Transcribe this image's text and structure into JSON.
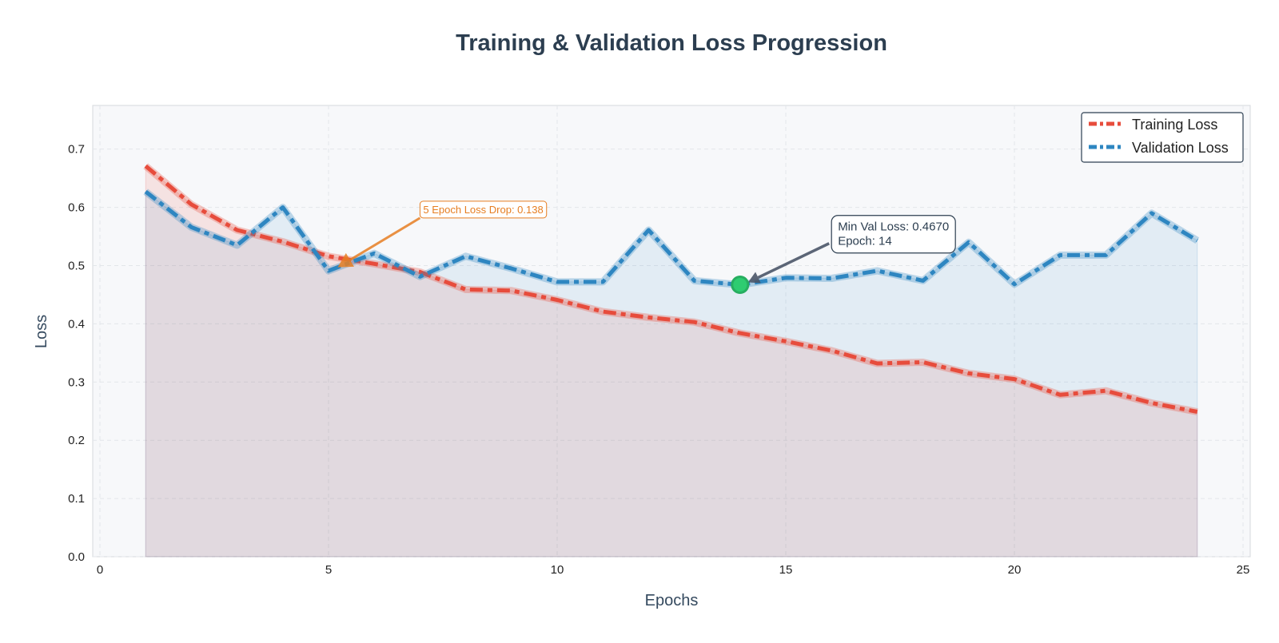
{
  "chart_data": {
    "type": "line",
    "title": "Training & Validation Loss Progression",
    "xlabel": "Epochs",
    "ylabel": "Loss",
    "xlim": [
      0,
      25
    ],
    "ylim": [
      0,
      0.775
    ],
    "xticks": [
      0,
      5,
      10,
      15,
      20,
      25
    ],
    "yticks": [
      0.0,
      0.1,
      0.2,
      0.3,
      0.4,
      0.5,
      0.6,
      0.7
    ],
    "grid": true,
    "legend_position": "top-right",
    "x": [
      1,
      2,
      3,
      4,
      5,
      6,
      7,
      8,
      9,
      10,
      11,
      12,
      13,
      14,
      15,
      16,
      17,
      18,
      19,
      20,
      21,
      22,
      23,
      24
    ],
    "series": [
      {
        "name": "Training Loss",
        "color": "#e74c3c",
        "fill": true,
        "values": [
          0.671,
          0.605,
          0.561,
          0.541,
          0.516,
          0.503,
          0.489,
          0.459,
          0.457,
          0.441,
          0.421,
          0.411,
          0.403,
          0.384,
          0.37,
          0.354,
          0.332,
          0.334,
          0.315,
          0.305,
          0.278,
          0.285,
          0.264,
          0.249
        ]
      },
      {
        "name": "Validation Loss",
        "color": "#2e86c1",
        "fill": true,
        "values": [
          0.627,
          0.566,
          0.535,
          0.6,
          0.491,
          0.521,
          0.481,
          0.516,
          0.495,
          0.472,
          0.472,
          0.561,
          0.474,
          0.467,
          0.479,
          0.478,
          0.491,
          0.474,
          0.54,
          0.468,
          0.518,
          0.518,
          0.59,
          0.543
        ]
      }
    ],
    "annotations": [
      {
        "text": "5 Epoch Loss Drop: 0.138",
        "target_x": 5.2,
        "target_y": 0.497,
        "text_x": 7,
        "text_y": 0.59,
        "color": "#e67e22"
      },
      {
        "line1": "Min Val Loss: 0.4670",
        "line2": "Epoch: 14",
        "target_x": 14,
        "target_y": 0.467,
        "text_x": 16,
        "text_y": 0.56,
        "color": "#2c3e50"
      }
    ],
    "marker": {
      "x": 14,
      "y": 0.467,
      "color": "#2ecc71"
    }
  }
}
